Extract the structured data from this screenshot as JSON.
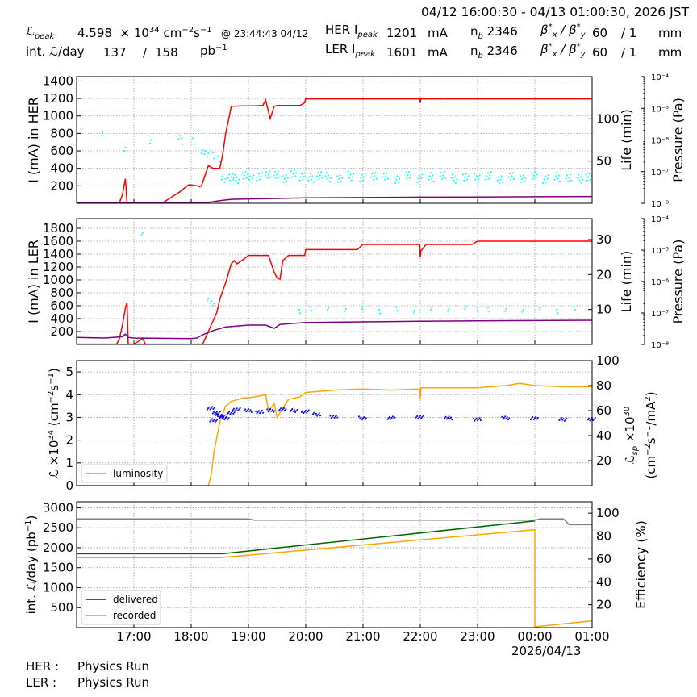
{
  "header": {
    "time_range": "04/12 16:00:30 - 04/13 01:00:30, 2026 JST",
    "lpeak_label": "peak",
    "lpeak_value": "4.598",
    "lpeak_mult": "× 10",
    "lpeak_exp": "34",
    "lpeak_unit_cm": "cm",
    "lpeak_unit_exp1": "−2",
    "lpeak_unit_s": "s",
    "lpeak_unit_exp2": "−1",
    "lpeak_time": "@ 23:44:43 04/12",
    "intl_label": "int. ",
    "intl_per": "/day",
    "intl_value1": "137",
    "intl_slash": "/",
    "intl_value2": "158",
    "intl_unit": "pb",
    "intl_unit_exp": "−1",
    "her_label": "HER I",
    "her_peak_sub": "peak",
    "her_current": "1201",
    "her_unit": "mA",
    "her_nb_label": "n",
    "her_nb_sub": "b",
    "her_nb": "2346",
    "her_beta_x": "60",
    "her_beta_y": "/ 1",
    "her_beta_unit": "mm",
    "ler_label": "LER I",
    "ler_peak_sub": "peak",
    "ler_current": "1601",
    "ler_unit": "mA",
    "ler_nb_label": "n",
    "ler_nb_sub": "b",
    "ler_nb": "2346",
    "ler_beta_x": "60",
    "ler_beta_y": "/ 1",
    "ler_beta_unit": "mm",
    "beta_label": "β",
    "beta_sep": " / β"
  },
  "footer": {
    "her_label": "HER :",
    "her_status": "Physics Run",
    "ler_label": "LER :",
    "ler_status": "Physics Run"
  },
  "colors": {
    "current": "#ff0000",
    "life": "#00ffff",
    "pressure": "#800080",
    "luminosity": "#ffa500",
    "specific_lumi": "#0000ff",
    "delivered": "#006400",
    "recorded": "#ffa500",
    "efficiency": "#808080",
    "grid": "#9a9a9a"
  },
  "chart_data": [
    {
      "type": "line",
      "ylabel": "I (mA) in HER",
      "ylabel_right1": "Life (min)",
      "ylabel_right2": "Pressure (Pa)",
      "ylim": [
        0,
        1450
      ],
      "yticks": [
        200,
        400,
        600,
        800,
        1000,
        1200,
        1400
      ],
      "right1_ylim": [
        0,
        150
      ],
      "right1_yticks": [
        50,
        100
      ],
      "right2_log": true,
      "right2_ticks": [
        "10⁻⁴",
        "10⁻⁵",
        "10⁻⁶",
        "10⁻⁷",
        "10⁻⁸"
      ],
      "x_hours": [
        16.0,
        17.0,
        18.0,
        19.0,
        20.0,
        21.0,
        22.0,
        23.0,
        24.0,
        25.0
      ],
      "series": [
        {
          "key": "current",
          "x": [
            16.0,
            16.7,
            16.75,
            16.8,
            16.85,
            16.88,
            16.9,
            17.0,
            17.3,
            17.5,
            17.8,
            17.95,
            18.0,
            18.1,
            18.15,
            18.18,
            18.3,
            18.38,
            18.5,
            18.55,
            18.6,
            18.7,
            18.9,
            19.1,
            19.25,
            19.3,
            19.38,
            19.45,
            19.5,
            19.7,
            19.9,
            19.98,
            20.0,
            20.5,
            21.0,
            21.5,
            21.99,
            22.0,
            22.01,
            22.5,
            23.0,
            23.5,
            24.0,
            24.5,
            25.0
          ],
          "y": [
            5,
            5,
            10,
            100,
            280,
            10,
            5,
            5,
            5,
            5,
            130,
            210,
            210,
            200,
            190,
            200,
            430,
            400,
            400,
            560,
            790,
            1110,
            1115,
            1115,
            1120,
            1180,
            970,
            1110,
            1120,
            1120,
            1120,
            1150,
            1195,
            1195,
            1195,
            1195,
            1195,
            1150,
            1195,
            1195,
            1195,
            1195,
            1195,
            1195,
            1195
          ]
        },
        {
          "key": "pressure",
          "x": [
            16.0,
            17.0,
            17.5,
            18.0,
            18.3,
            18.5,
            18.7,
            19.0,
            19.5,
            20.0,
            21.0,
            22.0,
            23.0,
            24.0,
            25.0
          ],
          "y": [
            5,
            5,
            5,
            5,
            10,
            30,
            45,
            50,
            55,
            62,
            66,
            70,
            72,
            75,
            78
          ]
        },
        {
          "key": "life_scatter",
          "x": [
            16.45,
            16.85,
            17.3,
            17.8,
            17.85,
            18.05,
            18.2,
            18.25,
            18.3,
            18.4,
            18.5,
            18.55,
            18.6,
            18.7,
            18.8,
            18.95,
            19.05,
            19.2,
            19.35,
            19.5,
            19.65,
            19.8,
            19.95,
            20.1,
            20.25,
            20.4,
            20.6,
            20.8,
            21.0,
            21.2,
            21.4,
            21.6,
            21.8,
            22.0,
            22.2,
            22.4,
            22.6,
            22.8,
            23.0,
            23.2,
            23.4,
            23.6,
            23.8,
            24.0,
            24.2,
            24.4,
            24.6,
            24.8,
            24.95
          ],
          "y": [
            85,
            65,
            72,
            75,
            74,
            72,
            63,
            60,
            55,
            58,
            52,
            33,
            28,
            31,
            29,
            33,
            30,
            31,
            35,
            33,
            30,
            34,
            32,
            30,
            33,
            31,
            29,
            32,
            30,
            33,
            31,
            29,
            32,
            30,
            31,
            33,
            29,
            31,
            30,
            32,
            29,
            31,
            30,
            32,
            29,
            31,
            30,
            29,
            31
          ]
        }
      ]
    },
    {
      "type": "line",
      "ylabel": "I (mA) in LER",
      "ylabel_right1": "Life (min)",
      "ylabel_right2": "Pressure (Pa)",
      "ylim": [
        0,
        1950
      ],
      "yticks": [
        200,
        400,
        600,
        800,
        1000,
        1200,
        1400,
        1600,
        1800
      ],
      "right1_ylim": [
        0,
        36
      ],
      "right1_yticks": [
        10,
        20,
        30
      ],
      "right2_log": true,
      "right2_ticks": [
        "10⁻⁴",
        "10⁻⁵",
        "10⁻⁶",
        "10⁻⁷",
        "10⁻⁸"
      ],
      "series": [
        {
          "key": "current",
          "x": [
            16.0,
            16.7,
            16.75,
            16.8,
            16.85,
            16.88,
            16.9,
            17.0,
            17.1,
            17.15,
            17.2,
            17.5,
            18.0,
            18.2,
            18.3,
            18.45,
            18.5,
            18.6,
            18.7,
            18.75,
            18.8,
            18.95,
            19.0,
            19.35,
            19.45,
            19.5,
            19.55,
            19.6,
            19.7,
            19.98,
            20.0,
            20.5,
            20.9,
            21.0,
            21.5,
            21.99,
            22.0,
            22.01,
            22.1,
            22.5,
            22.9,
            23.0,
            24.0,
            25.0
          ],
          "y": [
            5,
            5,
            100,
            300,
            560,
            650,
            5,
            5,
            60,
            100,
            5,
            5,
            5,
            5,
            200,
            500,
            700,
            950,
            1250,
            1300,
            1250,
            1340,
            1380,
            1380,
            1120,
            1030,
            1010,
            1300,
            1380,
            1380,
            1470,
            1470,
            1470,
            1550,
            1550,
            1550,
            1350,
            1450,
            1550,
            1550,
            1550,
            1600,
            1600,
            1600
          ]
        },
        {
          "key": "pressure",
          "x": [
            16.0,
            16.5,
            16.8,
            16.85,
            16.9,
            17.0,
            17.5,
            18.0,
            18.1,
            18.2,
            18.4,
            18.6,
            19.0,
            19.3,
            19.45,
            19.55,
            19.7,
            20.0,
            21.0,
            22.0,
            23.0,
            24.0,
            25.0
          ],
          "y": [
            110,
            100,
            120,
            160,
            110,
            100,
            95,
            90,
            100,
            150,
            220,
            270,
            300,
            300,
            250,
            310,
            320,
            340,
            350,
            360,
            365,
            370,
            375
          ]
        },
        {
          "key": "life_scatter",
          "x": [
            17.15,
            18.3,
            18.35,
            18.4,
            19.9,
            20.1,
            20.4,
            20.7,
            21.0,
            21.3,
            21.6,
            21.9,
            22.2,
            22.5,
            22.8,
            23.0,
            23.2,
            23.5,
            23.8,
            24.1,
            24.4,
            24.7
          ],
          "y": [
            32,
            13,
            12,
            11,
            9.5,
            10,
            10.5,
            9.8,
            10.2,
            9.6,
            10.1,
            9.9,
            10.3,
            9.7,
            10,
            10.2,
            9.8,
            10.1,
            9.6,
            10,
            9.7,
            10.4
          ]
        }
      ]
    },
    {
      "type": "line",
      "ylabel": "×10",
      "ylabel_exp": "34",
      "ylabel_unit": " (cm",
      "ylabel_unit_exp1": "−2",
      "ylabel_unit_s": "s",
      "ylabel_unit_exp2": "−1",
      "ylabel_close": ")",
      "ylabel_right1": "×10",
      "ylabel_right1_exp": "30",
      "ylabel_right1_sub": "sp",
      "ylabel_right2": "(cm",
      "ylabel_right2_exp1": "−2",
      "ylabel_right2_s": "s",
      "ylabel_right2_exp2": "−1",
      "ylabel_right2_tail": "/mA",
      "ylabel_right2_exp3": "2",
      "ylabel_right2_close": ")",
      "ylim": [
        0,
        5.5
      ],
      "yticks": [
        0,
        1,
        2,
        3,
        4,
        5
      ],
      "right1_ylim": [
        0,
        100
      ],
      "right1_yticks": [
        20,
        40,
        60,
        80,
        100
      ],
      "legend": [
        "luminosity"
      ],
      "legend_loc": "lower-left",
      "series": [
        {
          "key": "luminosity",
          "name": "luminosity",
          "x": [
            16.0,
            18.3,
            18.35,
            18.4,
            18.5,
            18.6,
            18.7,
            18.9,
            19.1,
            19.3,
            19.35,
            19.45,
            19.5,
            19.7,
            19.9,
            20.0,
            20.5,
            21.0,
            21.5,
            21.99,
            22.0,
            22.01,
            22.5,
            23.0,
            23.5,
            23.74,
            24.0,
            24.5,
            25.0
          ],
          "y": [
            0,
            0,
            0.5,
            1.5,
            2.8,
            3.5,
            3.7,
            3.85,
            3.9,
            4.0,
            3.3,
            3.6,
            3.0,
            3.8,
            3.9,
            4.1,
            4.2,
            4.25,
            4.2,
            4.25,
            3.8,
            4.3,
            4.3,
            4.3,
            4.4,
            4.5,
            4.4,
            4.35,
            4.35
          ]
        },
        {
          "key": "specific",
          "x": [
            18.35,
            18.4,
            18.45,
            18.5,
            18.55,
            18.6,
            18.7,
            18.8,
            19.0,
            19.2,
            19.4,
            19.6,
            19.8,
            20.0,
            20.2,
            20.5,
            21.0,
            21.5,
            22.0,
            22.5,
            23.0,
            23.5,
            24.0,
            24.5,
            25.0
          ],
          "y": [
            62,
            52,
            58,
            56,
            55,
            54,
            58,
            61,
            60,
            59,
            60,
            61,
            60,
            59,
            57,
            55,
            54,
            54,
            55,
            54,
            53,
            54,
            54,
            53,
            53
          ]
        }
      ]
    },
    {
      "type": "line",
      "ylabel": "int. ",
      "ylabel_mid": "/day (pb",
      "ylabel_exp": "−1",
      "ylabel_close": ")",
      "ylabel_right1": "Efficiency (%)",
      "ylim": [
        0,
        3150
      ],
      "yticks": [
        500,
        1000,
        1500,
        2000,
        2500,
        3000
      ],
      "right1_ylim": [
        0,
        110
      ],
      "right1_yticks": [
        20,
        40,
        60,
        80,
        100
      ],
      "xticks": [
        "17:00",
        "18:00",
        "19:00",
        "20:00",
        "21:00",
        "22:00",
        "23:00",
        "00:00",
        "01:00"
      ],
      "xlabel_date": "2026/04/13",
      "legend": [
        "delivered",
        "recorded"
      ],
      "legend_loc": "lower-left",
      "series": [
        {
          "key": "delivered",
          "name": "delivered",
          "x": [
            16.0,
            18.55,
            24.0,
            24.0
          ],
          "y": [
            1850,
            1850,
            2670,
            2670
          ]
        },
        {
          "key": "recorded",
          "name": "recorded",
          "x": [
            16.0,
            18.5,
            24.0,
            24.0,
            25.0
          ],
          "y": [
            1750,
            1750,
            2450,
            20,
            170
          ]
        },
        {
          "key": "efficiency",
          "x": [
            16.0,
            19.0,
            19.1,
            24.0,
            24.1,
            24.5,
            24.6,
            25.0
          ],
          "y": [
            95,
            95,
            94,
            94,
            95,
            95,
            90,
            90
          ]
        }
      ]
    }
  ]
}
